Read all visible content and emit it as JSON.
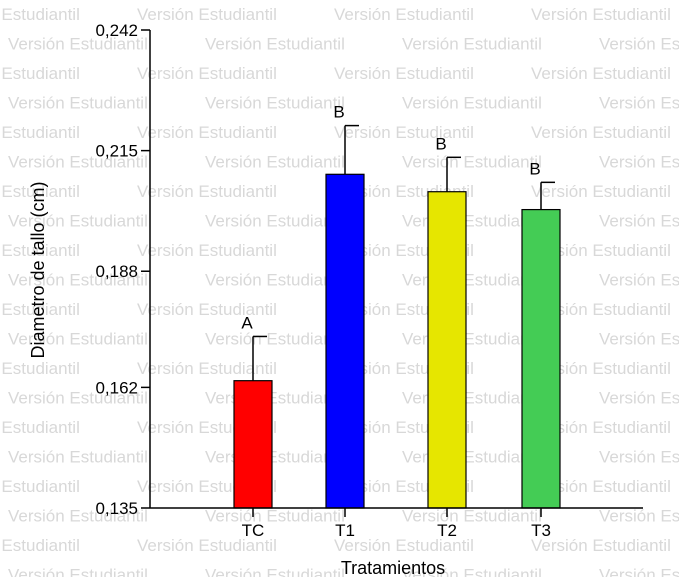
{
  "watermark_text": "Versión Estudiantil",
  "chart_data": {
    "type": "bar",
    "title": "",
    "xlabel": "Tratamientos",
    "ylabel": "Diametro de tallo (cm)",
    "ylim": [
      0.135,
      0.242
    ],
    "yticks": [
      "0,135",
      "0,162",
      "0,188",
      "0,215",
      "0,242"
    ],
    "ytick_values": [
      0.135,
      0.162,
      0.188,
      0.215,
      0.242
    ],
    "grid": false,
    "categories": [
      "TC",
      "T1",
      "T2",
      "T3"
    ],
    "values": [
      0.1635,
      0.2097,
      0.2058,
      0.2018
    ],
    "error_upper": [
      0.1734,
      0.2206,
      0.2135,
      0.2079
    ],
    "significance_letters": [
      "A",
      "B",
      "B",
      "B"
    ],
    "colors": [
      "#ff0000",
      "#0000ff",
      "#e6e600",
      "#44cc55"
    ]
  }
}
